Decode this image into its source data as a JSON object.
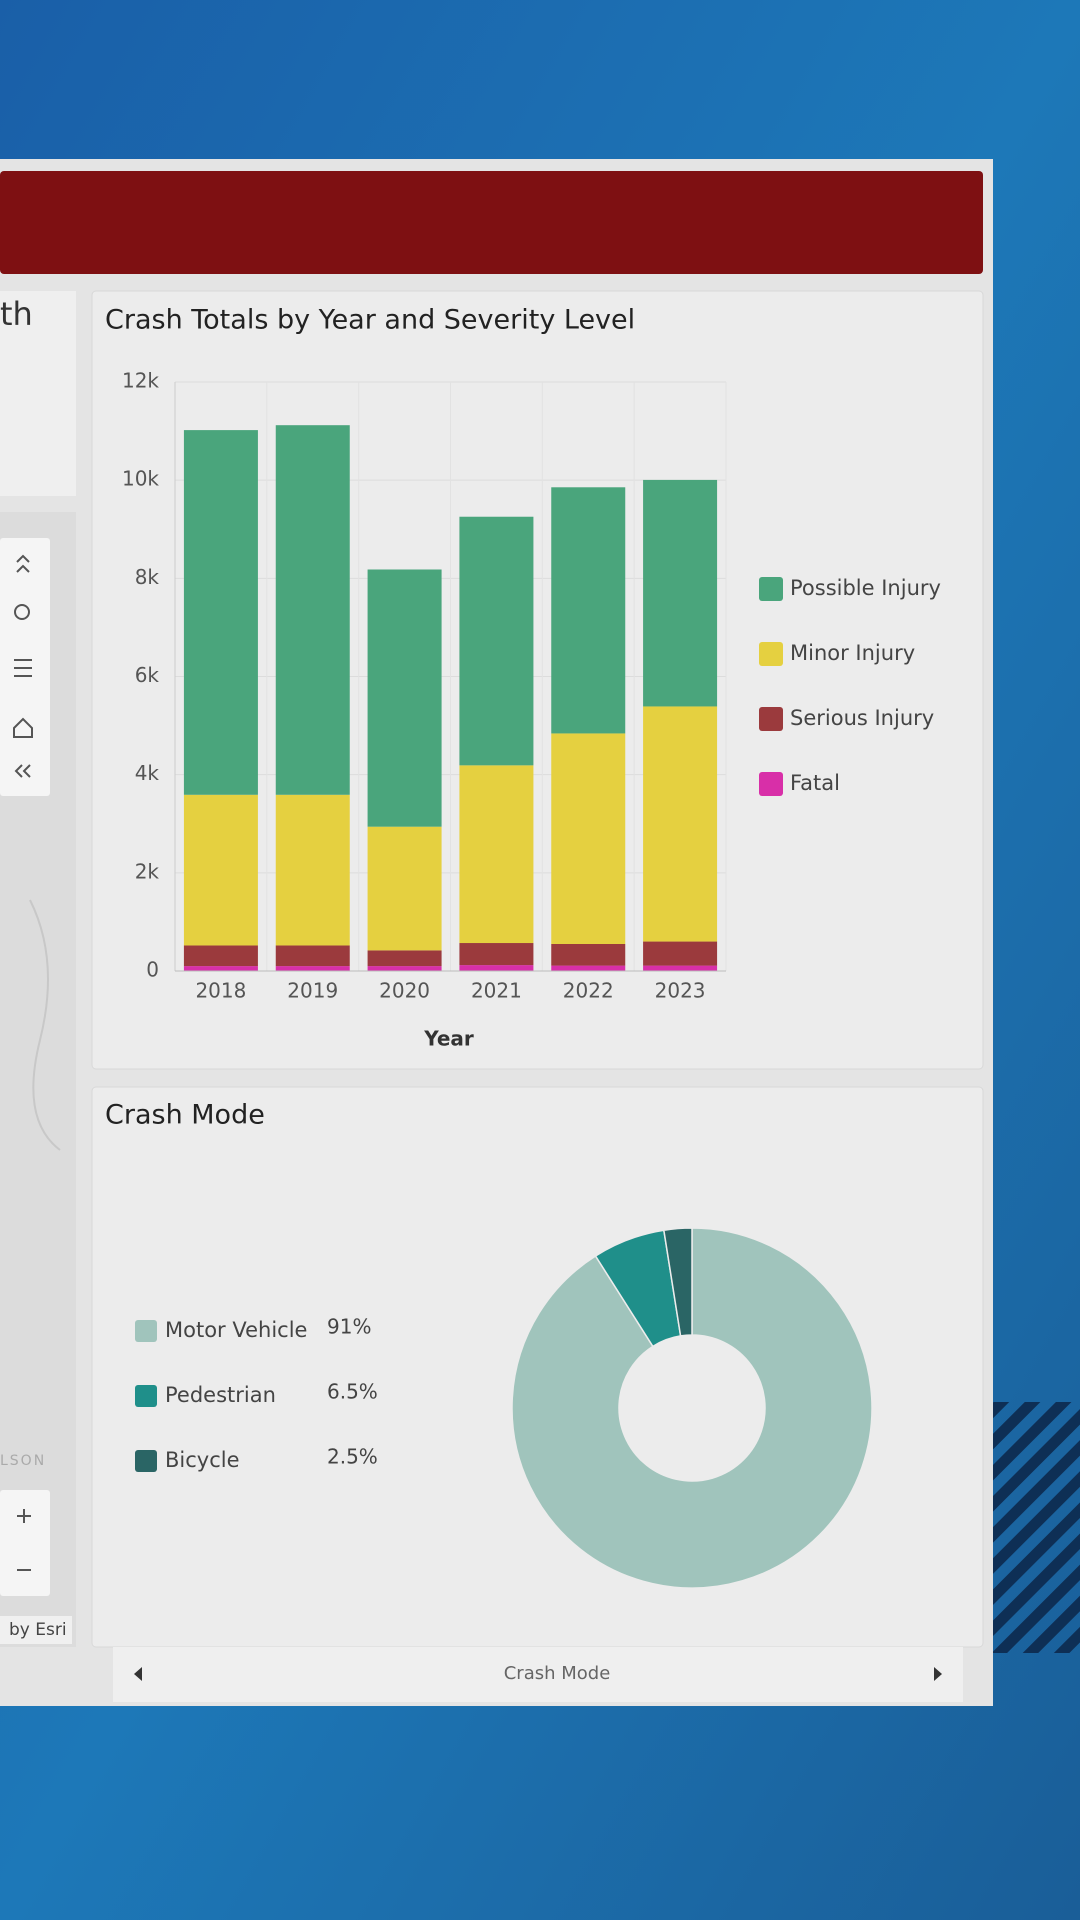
{
  "left_panel": {
    "title_fragment": "th",
    "map_label": "LSON",
    "attribution": "by Esri"
  },
  "chart_data": [
    {
      "type": "bar",
      "stacked": true,
      "title": "Crash Totals by Year and Severity Level",
      "x_label": "Year",
      "categories": [
        "2018",
        "2019",
        "2020",
        "2021",
        "2022",
        "2023"
      ],
      "series": [
        {
          "name": "Possible Injury",
          "color": "#4aa57c",
          "values": [
            7430,
            7530,
            5240,
            5065,
            5015,
            4615
          ]
        },
        {
          "name": "Minor Injury",
          "color": "#e5d040",
          "values": [
            3070,
            3070,
            2520,
            3620,
            4290,
            4790
          ]
        },
        {
          "name": "Serious Injury",
          "color": "#9b3a3d",
          "values": [
            420,
            420,
            320,
            450,
            440,
            490
          ]
        },
        {
          "name": "Fatal",
          "color": "#d82fa8",
          "values": [
            100,
            100,
            100,
            120,
            110,
            110
          ]
        }
      ],
      "ylim": [
        0,
        12000
      ],
      "yticks": [
        0,
        {
          "value": 2000,
          "label": "2k"
        },
        {
          "value": 4000,
          "label": "4k"
        },
        {
          "value": 6000,
          "label": "6k"
        },
        {
          "value": 8000,
          "label": "8k"
        },
        {
          "value": 10000,
          "label": "10k"
        },
        {
          "value": 12000,
          "label": "12k"
        }
      ],
      "grid": true,
      "legend": "right"
    },
    {
      "type": "donut",
      "title": "Crash Mode",
      "categories": [
        "Motor Vehicle",
        "Pedestrian",
        "Bicycle"
      ],
      "values": [
        91,
        6.5,
        2.5
      ],
      "value_labels": [
        "91%",
        "6.5%",
        "2.5%"
      ],
      "colors": [
        "#a0c4bc",
        "#1f8f8a",
        "#2a6565"
      ],
      "legend": "left"
    }
  ],
  "footer": {
    "label": "Crash Mode"
  }
}
